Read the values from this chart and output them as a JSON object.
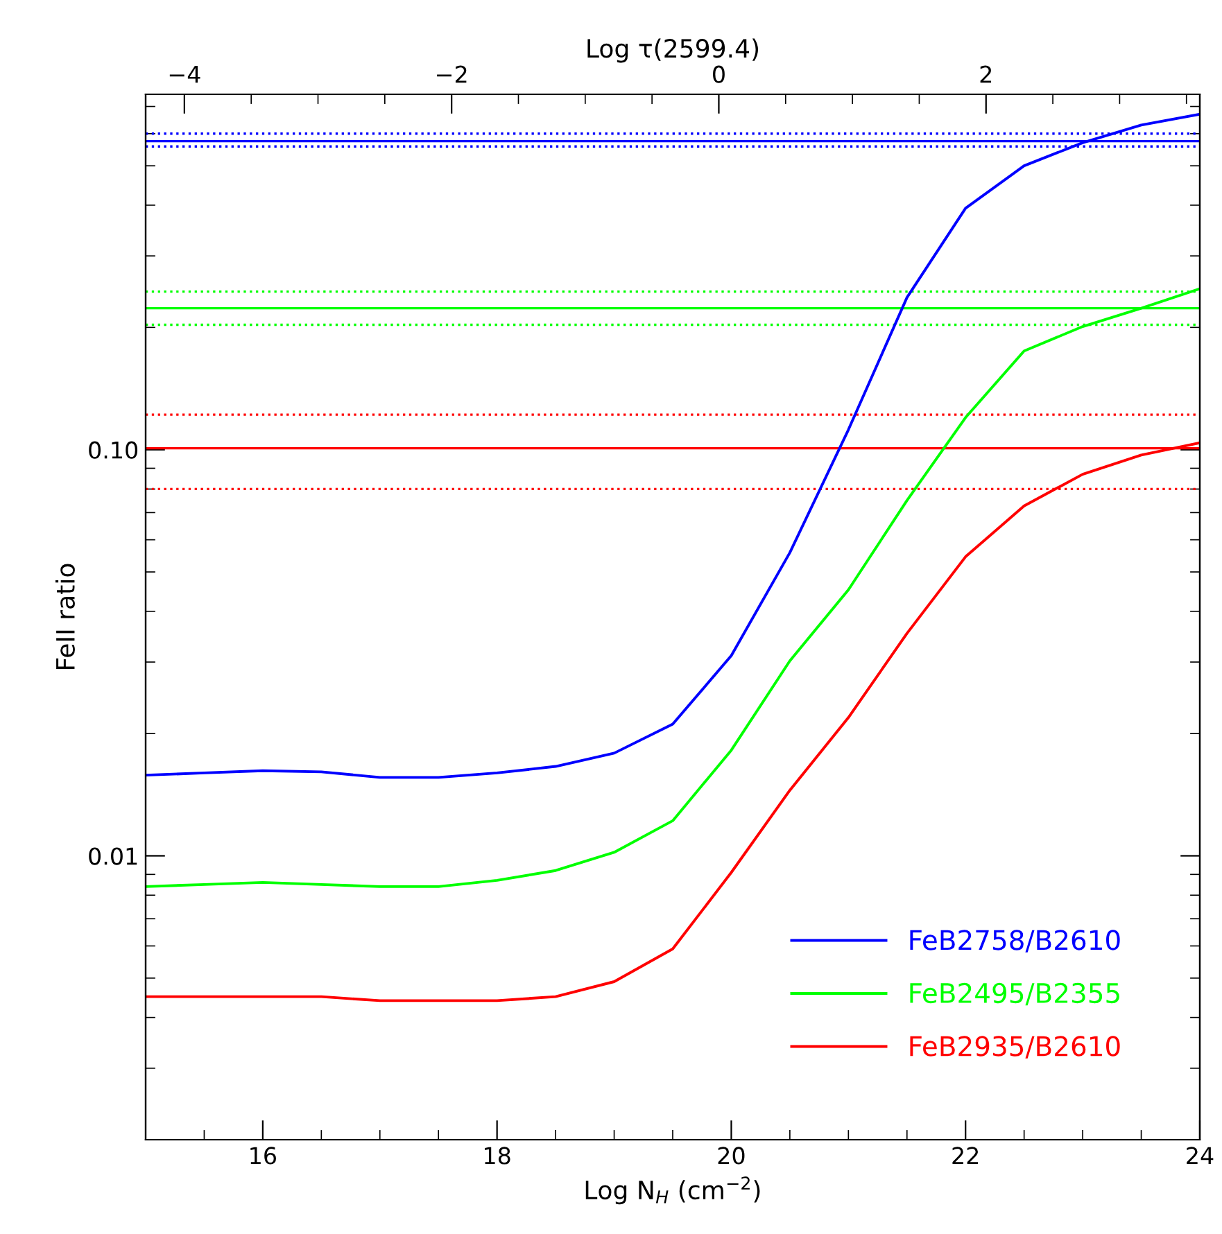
{
  "chart_data": {
    "type": "line",
    "xlabel": "Log N$_{H}$ (cm$^{−2}$)",
    "ylabel": "FeII ratio",
    "x2label": "Log τ(2599.4)",
    "x": [
      15,
      15.5,
      16,
      16.5,
      17,
      17.5,
      18,
      18.5,
      19,
      19.5,
      20,
      20.5,
      21,
      21.5,
      22,
      22.5,
      23,
      23.5,
      24
    ],
    "series": [
      {
        "name": "FeB2758/B2610",
        "color": "#0000ff",
        "values": [
          0.0158,
          0.016,
          0.0162,
          0.0161,
          0.0156,
          0.0156,
          0.016,
          0.0166,
          0.0179,
          0.0211,
          0.0311,
          0.0558,
          0.112,
          0.237,
          0.393,
          0.5,
          0.57,
          0.63,
          0.67
        ]
      },
      {
        "name": "FeB2495/B2355",
        "color": "#00ff00",
        "values": [
          0.0084,
          0.0085,
          0.0086,
          0.0085,
          0.0084,
          0.0084,
          0.0087,
          0.0092,
          0.0102,
          0.0122,
          0.0182,
          0.0302,
          0.0452,
          0.075,
          0.12,
          0.175,
          0.201,
          0.223,
          0.249
        ]
      },
      {
        "name": "FeB2935/B2610",
        "color": "#ff0000",
        "values": [
          0.0045,
          0.0045,
          0.0045,
          0.0045,
          0.0044,
          0.0044,
          0.0044,
          0.0045,
          0.0049,
          0.0059,
          0.0091,
          0.0145,
          0.0219,
          0.0353,
          0.0545,
          0.0727,
          0.087,
          0.097,
          0.104
        ]
      }
    ],
    "ref_lines": [
      {
        "axis": "y",
        "value": 0.575,
        "color": "#0000ff",
        "line_style": "solid"
      },
      {
        "axis": "y",
        "value": 0.6,
        "color": "#0000ff",
        "line_style": "dotted"
      },
      {
        "axis": "y",
        "value": 0.558,
        "color": "#0000ff",
        "line_style": "dotted"
      },
      {
        "axis": "y",
        "value": 0.223,
        "color": "#00ff00",
        "line_style": "solid"
      },
      {
        "axis": "y",
        "value": 0.245,
        "color": "#00ff00",
        "line_style": "dotted"
      },
      {
        "axis": "y",
        "value": 0.203,
        "color": "#00ff00",
        "line_style": "dotted"
      },
      {
        "axis": "y",
        "value": 0.1008,
        "color": "#ff0000",
        "line_style": "solid"
      },
      {
        "axis": "y",
        "value": 0.122,
        "color": "#ff0000",
        "line_style": "dotted"
      },
      {
        "axis": "y",
        "value": 0.08,
        "color": "#ff0000",
        "line_style": "dotted"
      }
    ],
    "log": "y",
    "xlim": [
      15,
      24
    ],
    "xticks": [
      16,
      18,
      20,
      22,
      24
    ],
    "ylim": [
      0.002,
      0.75
    ],
    "yticks": [
      {
        "value": 0.01,
        "label": "0.01"
      },
      {
        "value": 0.1,
        "label": "0.10"
      }
    ],
    "x2lim": [
      -4.29,
      3.6
    ],
    "x2ticks": [
      {
        "value": -4,
        "label": "−4"
      },
      {
        "value": -2,
        "label": "−2"
      },
      0,
      2
    ],
    "legend": "bottom right",
    "grid": false,
    "line_style": "solid"
  }
}
